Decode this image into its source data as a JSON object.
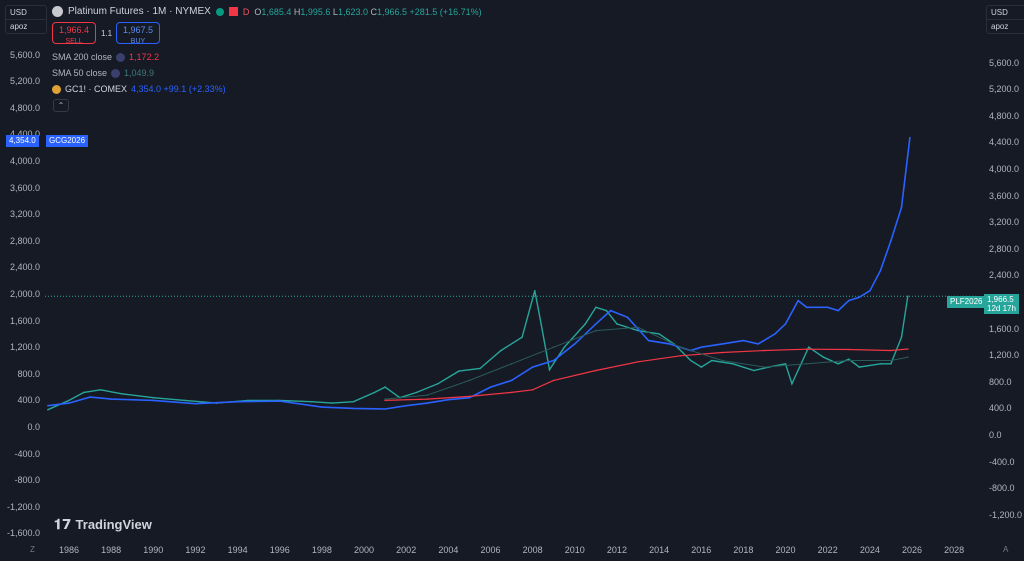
{
  "currency_left": {
    "label": "USD",
    "scale": "apoz"
  },
  "currency_right": {
    "label": "USD",
    "scale": "apoz"
  },
  "header": {
    "symbol_title": "Platinum Futures · 1M · NYMEX",
    "badge_d": "D",
    "ohlc": {
      "o_label": "O",
      "o": "1,685.4",
      "h_label": "H",
      "h": "1,995.6",
      "l_label": "L",
      "l": "1,623.0",
      "c_label": "C",
      "c": "1,966.5",
      "chg": "+281.5 (+16.71%)"
    }
  },
  "trade": {
    "sell_price": "1,966.4",
    "sell_label": "SELL",
    "spread": "1.1",
    "buy_price": "1,967.5",
    "buy_label": "BUY"
  },
  "indicators": [
    {
      "name": "SMA 200 close",
      "value": "1,172.2",
      "color": "#f23645"
    },
    {
      "name": "SMA 50 close",
      "value": "1,049.9",
      "color": "#2a5b5b"
    },
    {
      "name": "GC1! · COMEX",
      "value": "4,354.0 +99.1 (+2.33%)",
      "color": "#2962ff"
    }
  ],
  "tags": {
    "gold_price": "4,354.0",
    "gold_sym": "GCG2026",
    "plat_sym": "PLF2026",
    "plat_price": "1,966.5",
    "plat_countdown": "12d 17h"
  },
  "watermark": "TradingView",
  "axis": {
    "left_ticks": [
      "5,600.0",
      "5,200.0",
      "4,800.0",
      "4,400.0",
      "4,000.0",
      "3,600.0",
      "3,200.0",
      "2,800.0",
      "2,400.0",
      "2,000.0",
      "1,600.0",
      "1,200.0",
      "800.0",
      "400.0",
      "0.0",
      "-400.0",
      "-800.0",
      "-1,200.0",
      "-1,600.0"
    ],
    "right_ticks": [
      "5,600.0",
      "5,200.0",
      "4,800.0",
      "4,400.0",
      "4,000.0",
      "3,600.0",
      "3,200.0",
      "2,800.0",
      "2,400.0",
      "2,000.0",
      "1,600.0",
      "1,200.0",
      "800.0",
      "400.0",
      "0.0",
      "-400.0",
      "-800.0",
      "-1,200.0"
    ],
    "x_ticks": [
      "1986",
      "1988",
      "1990",
      "1992",
      "1994",
      "1996",
      "1998",
      "2000",
      "2002",
      "2004",
      "2006",
      "2008",
      "2010",
      "2012",
      "2014",
      "2016",
      "2018",
      "2020",
      "2022",
      "2024",
      "2026",
      "2028"
    ],
    "corner_left": "Z",
    "corner_right": "A"
  },
  "chart_data": {
    "type": "line",
    "title": "Platinum Futures · 1M · NYMEX",
    "series": [
      {
        "name": "Platinum Futures",
        "color": "#26a69a",
        "x": [
          1985.0,
          1986.0,
          1986.7,
          1987.5,
          1988.5,
          1990.0,
          1991.5,
          1993.0,
          1994.5,
          1996.0,
          1997.5,
          1998.5,
          1999.5,
          2000.5,
          2001.0,
          2001.7,
          2002.5,
          2003.5,
          2004.5,
          2005.5,
          2006.5,
          2007.5,
          2008.1,
          2008.4,
          2008.8,
          2009.0,
          2009.5,
          2010.5,
          2011.0,
          2011.5,
          2012.0,
          2013.0,
          2014.0,
          2014.7,
          2015.5,
          2016.0,
          2016.5,
          2017.5,
          2018.5,
          2019.2,
          2020.0,
          2020.3,
          2021.1,
          2021.8,
          2022.5,
          2023.0,
          2023.5,
          2024.5,
          2025.0,
          2025.5,
          2025.8
        ],
        "y": [
          260,
          400,
          520,
          560,
          500,
          440,
          400,
          360,
          400,
          400,
          380,
          360,
          380,
          520,
          600,
          440,
          520,
          650,
          840,
          880,
          1150,
          1350,
          2050,
          1550,
          860,
          960,
          1200,
          1550,
          1800,
          1750,
          1550,
          1450,
          1400,
          1250,
          1000,
          900,
          1000,
          950,
          850,
          900,
          950,
          650,
          1200,
          1050,
          950,
          1020,
          900,
          950,
          950,
          1350,
          1966.5
        ]
      },
      {
        "name": "GC1! · COMEX",
        "color": "#2962ff",
        "x": [
          1985.0,
          1986.0,
          1987.0,
          1988.0,
          1990.0,
          1992.0,
          1994.0,
          1996.0,
          1998.0,
          1999.5,
          2001.0,
          2002.0,
          2003.0,
          2004.0,
          2005.0,
          2006.0,
          2007.0,
          2008.0,
          2009.0,
          2010.0,
          2011.0,
          2011.7,
          2012.5,
          2013.5,
          2014.5,
          2015.5,
          2016.0,
          2017.0,
          2018.0,
          2018.7,
          2019.5,
          2020.0,
          2020.6,
          2021.0,
          2021.5,
          2022.0,
          2022.5,
          2023.0,
          2023.5,
          2024.0,
          2024.5,
          2025.0,
          2025.5,
          2025.9
        ],
        "y": [
          320,
          360,
          450,
          420,
          400,
          350,
          380,
          390,
          300,
          280,
          270,
          320,
          360,
          410,
          440,
          600,
          700,
          900,
          1000,
          1250,
          1550,
          1750,
          1650,
          1300,
          1250,
          1150,
          1200,
          1250,
          1300,
          1250,
          1400,
          1550,
          1900,
          1800,
          1800,
          1800,
          1750,
          1900,
          1950,
          2050,
          2350,
          2800,
          3300,
          4354
        ]
      },
      {
        "name": "SMA 200 close",
        "color": "#f23645",
        "x": [
          2001.0,
          2003.0,
          2005.0,
          2007.0,
          2008.0,
          2009.0,
          2011.0,
          2013.0,
          2015.0,
          2017.0,
          2019.0,
          2021.0,
          2023.0,
          2025.0,
          2025.8
        ],
        "y": [
          400,
          420,
          460,
          520,
          560,
          700,
          850,
          980,
          1070,
          1120,
          1150,
          1170,
          1165,
          1150,
          1172.2
        ]
      },
      {
        "name": "SMA 50 close",
        "color": "#2a5b5b",
        "x": [
          2001.0,
          2003.0,
          2005.0,
          2007.0,
          2009.0,
          2011.0,
          2013.0,
          2015.0,
          2017.0,
          2019.0,
          2021.0,
          2023.0,
          2025.0,
          2025.8
        ],
        "y": [
          420,
          480,
          700,
          950,
          1200,
          1450,
          1500,
          1200,
          1000,
          900,
          950,
          1000,
          1000,
          1049.9
        ]
      }
    ],
    "xlim": [
      1984.0,
      2029.0
    ],
    "ylim": [
      -1650,
      5800
    ],
    "grid": false
  }
}
